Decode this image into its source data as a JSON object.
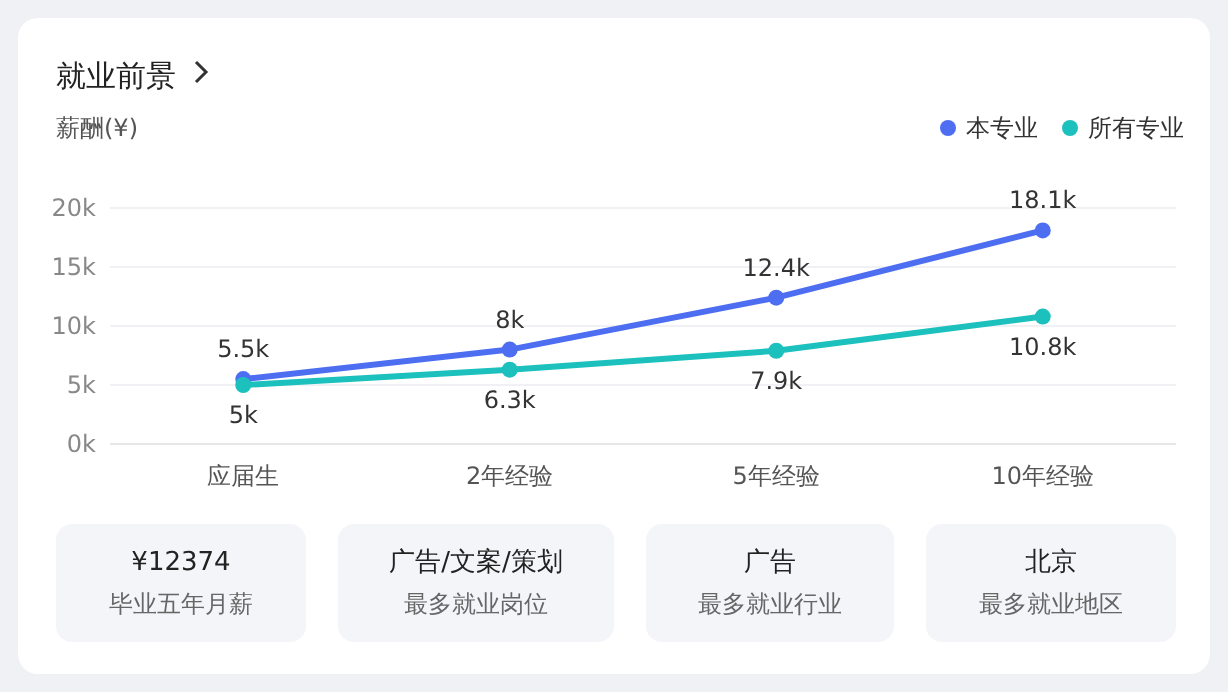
{
  "chart_data": {
    "type": "line",
    "title": "就业前景",
    "ylabel": "薪酬(¥)",
    "categories": [
      "应届生",
      "2年经验",
      "5年经验",
      "10年经验"
    ],
    "series": [
      {
        "name": "本专业",
        "color": "#4e6ef2",
        "values": [
          5.5,
          8,
          12.4,
          18.1
        ],
        "value_labels": [
          "5.5k",
          "8k",
          "12.4k",
          "18.1k"
        ]
      },
      {
        "name": "所有专业",
        "color": "#1cc0bd",
        "values": [
          5,
          6.3,
          7.9,
          10.8
        ],
        "value_labels": [
          "5k",
          "6.3k",
          "7.9k",
          "10.8k"
        ]
      }
    ],
    "ylim": [
      0,
      20
    ],
    "yticks": [
      {
        "value": 0,
        "label": "0k"
      },
      {
        "value": 5,
        "label": "5k"
      },
      {
        "value": 10,
        "label": "10k"
      },
      {
        "value": 15,
        "label": "15k"
      },
      {
        "value": 20,
        "label": "20k"
      }
    ],
    "grid": "y",
    "legend": "top right",
    "marker": "circle",
    "line_style": "solid",
    "annotations": [
      "¥12374",
      "毕业五年月薪",
      "广告/文案/策划",
      "最多就业岗位",
      "广告",
      "最多就业行业",
      "北京",
      "最多就业地区"
    ]
  }
}
